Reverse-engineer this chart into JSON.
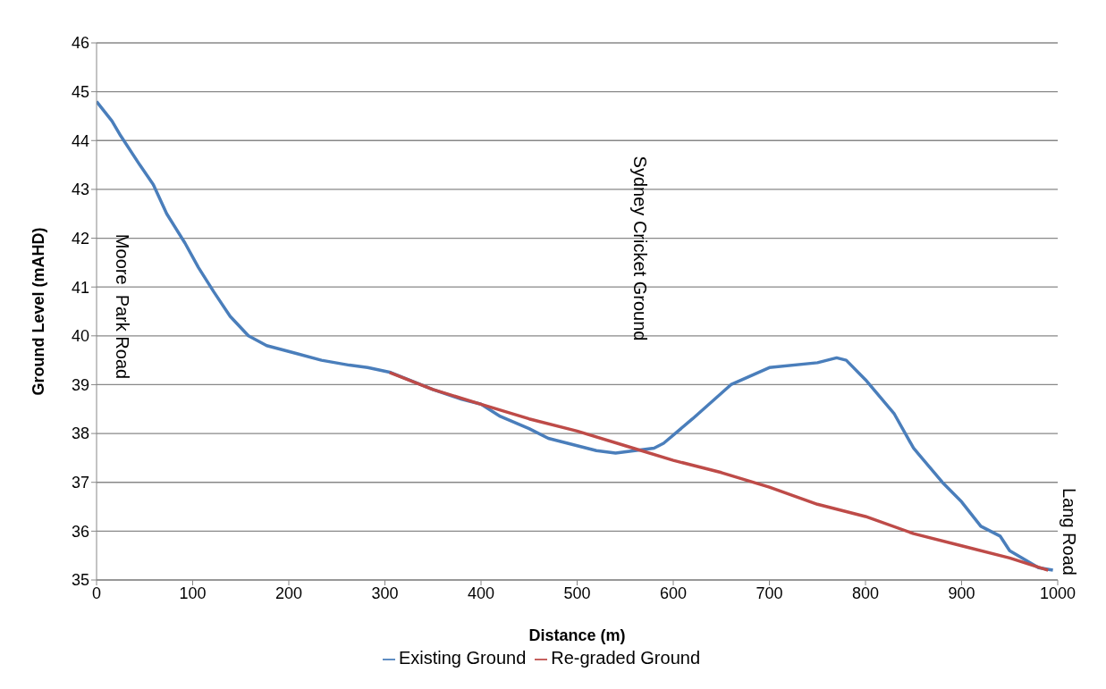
{
  "chart_data": {
    "type": "line",
    "xlabel": "Distance (m)",
    "ylabel": "Ground Level (mAHD)",
    "xlim": [
      0,
      1000
    ],
    "xticks": [
      0,
      100,
      200,
      300,
      400,
      500,
      600,
      700,
      800,
      900,
      1000
    ],
    "ylim": [
      35,
      46
    ],
    "yticks": [
      35,
      36,
      37,
      38,
      39,
      40,
      41,
      42,
      43,
      44,
      45,
      46
    ],
    "grid": "y",
    "legend": "bottom",
    "marker": "none",
    "line_style": "solid",
    "series": [
      {
        "name": "Existing Ground",
        "color": "#4a7ebb",
        "x": [
          0,
          16,
          25,
          45,
          59,
          73,
          92,
          106,
          122,
          139,
          158,
          177,
          206,
          234,
          263,
          282,
          306,
          350,
          380,
          400,
          420,
          450,
          470,
          500,
          520,
          540,
          560,
          580,
          590,
          620,
          660,
          700,
          750,
          770,
          780,
          800,
          830,
          850,
          880,
          900,
          920,
          940,
          950,
          980,
          995
        ],
        "values": [
          44.8,
          44.4,
          44.1,
          43.5,
          43.1,
          42.5,
          41.9,
          41.4,
          40.9,
          40.4,
          40.0,
          39.8,
          39.65,
          39.5,
          39.4,
          39.35,
          39.25,
          38.9,
          38.7,
          38.6,
          38.35,
          38.1,
          37.9,
          37.75,
          37.65,
          37.6,
          37.65,
          37.7,
          37.8,
          38.3,
          39.0,
          39.35,
          39.45,
          39.55,
          39.5,
          39.1,
          38.4,
          37.7,
          37.0,
          36.6,
          36.1,
          35.9,
          35.6,
          35.25,
          35.2
        ]
      },
      {
        "name": "Re-graded Ground",
        "color": "#be4b48",
        "x": [
          305,
          350,
          400,
          450,
          500,
          550,
          600,
          650,
          700,
          750,
          800,
          850,
          900,
          950,
          990
        ],
        "values": [
          39.25,
          38.9,
          38.6,
          38.3,
          38.05,
          37.75,
          37.45,
          37.2,
          36.9,
          36.55,
          36.3,
          35.95,
          35.7,
          35.45,
          35.2
        ]
      }
    ],
    "annotations": [
      "Moore  Park Road",
      "Sydney Cricket Ground",
      "Lang Road"
    ]
  }
}
